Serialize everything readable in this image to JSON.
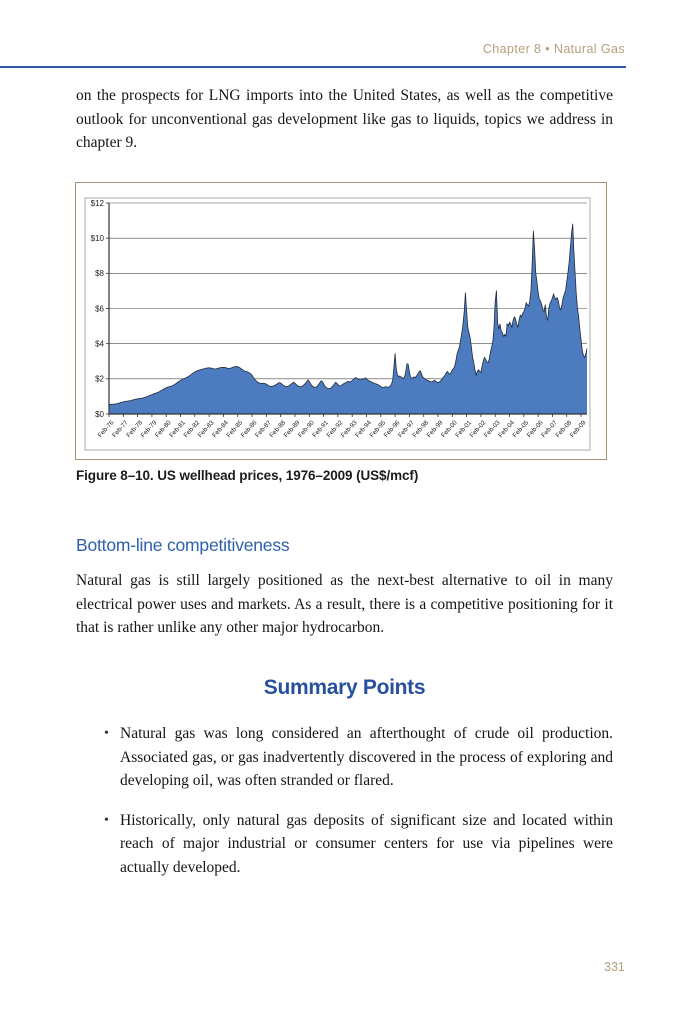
{
  "header": {
    "text": "Chapter 8  •  Natural Gas"
  },
  "intro_paragraph": "on the prospects for LNG imports into the United States, as well as the competitive outlook for unconventional gas development like gas to liquids, topics we address in chapter 9.",
  "figure": {
    "caption": "Figure 8–10. US wellhead prices, 1976–2009 (US$/mcf)"
  },
  "section": {
    "heading": "Bottom-line competitiveness",
    "body": "Natural gas is still largely positioned as the next-best alternative to oil in many electrical power uses and markets. As a result, there is a competitive positioning for it that is rather unlike any other major hydrocarbon."
  },
  "summary": {
    "heading": "Summary Points",
    "bullets": [
      "Natural gas was long considered an afterthought of crude oil production. Associated gas, or gas inadvertently discovered in the process of exploring and developing oil, was often stranded or flared.",
      "Historically, only natural gas deposits of significant size and located within reach of major industrial or consumer centers for use via pipelines were actually developed."
    ]
  },
  "page_number": "331",
  "colors": {
    "accent_tan": "#b3a07c",
    "rule_blue": "#2d5ca8",
    "heading_blue": "#2e61ad",
    "summary_blue": "#27509e",
    "area_fill": "#4d7bc0",
    "area_stroke": "#22293a",
    "gridline": "#4a4a4a",
    "axis": "#333333",
    "figure_border": "#ab8f72",
    "chart_frame": "#c9c9c9"
  },
  "chart_data": {
    "type": "area",
    "title": "",
    "xlabel": "",
    "ylabel": "",
    "frequency": "monthly",
    "x_start": "Feb-1976",
    "x_end": "Jul-2009",
    "ylim": [
      0,
      12
    ],
    "grid": true,
    "legend": false,
    "y_tick_labels": [
      "$0",
      "$2",
      "$4",
      "$6",
      "$8",
      "$10",
      "$12"
    ],
    "x_tick_labels": [
      "Feb-76",
      "Feb-77",
      "Feb-78",
      "Feb-79",
      "Feb-80",
      "Feb-81",
      "Feb-82",
      "Feb-83",
      "Feb-84",
      "Feb-85",
      "Feb-86",
      "Feb-87",
      "Feb-88",
      "Feb-89",
      "Feb-90",
      "Feb-91",
      "Feb-92",
      "Feb-93",
      "Feb-94",
      "Feb-95",
      "Feb-96",
      "Feb-97",
      "Feb-98",
      "Feb-99",
      "Feb-00",
      "Feb-01",
      "Feb-02",
      "Feb-03",
      "Feb-04",
      "Feb-05",
      "Feb-06",
      "Feb-07",
      "Feb-08",
      "Feb-09"
    ],
    "x_tick_month_interval": 12,
    "values": [
      0.54,
      0.55,
      0.55,
      0.56,
      0.56,
      0.57,
      0.58,
      0.59,
      0.61,
      0.63,
      0.65,
      0.67,
      0.69,
      0.71,
      0.72,
      0.73,
      0.74,
      0.75,
      0.76,
      0.78,
      0.8,
      0.82,
      0.84,
      0.85,
      0.86,
      0.87,
      0.88,
      0.89,
      0.91,
      0.92,
      0.94,
      0.96,
      0.99,
      1.02,
      1.05,
      1.08,
      1.1,
      1.13,
      1.16,
      1.18,
      1.2,
      1.23,
      1.26,
      1.3,
      1.34,
      1.38,
      1.42,
      1.46,
      1.49,
      1.52,
      1.54,
      1.56,
      1.58,
      1.61,
      1.64,
      1.68,
      1.72,
      1.77,
      1.82,
      1.87,
      1.91,
      1.95,
      1.98,
      2.01,
      2.04,
      2.07,
      2.11,
      2.15,
      2.2,
      2.25,
      2.3,
      2.35,
      2.39,
      2.43,
      2.46,
      2.48,
      2.5,
      2.52,
      2.54,
      2.56,
      2.58,
      2.6,
      2.61,
      2.62,
      2.63,
      2.62,
      2.6,
      2.58,
      2.57,
      2.56,
      2.57,
      2.59,
      2.61,
      2.63,
      2.64,
      2.65,
      2.66,
      2.65,
      2.63,
      2.61,
      2.6,
      2.59,
      2.61,
      2.63,
      2.66,
      2.68,
      2.69,
      2.7,
      2.69,
      2.66,
      2.62,
      2.57,
      2.52,
      2.47,
      2.44,
      2.42,
      2.4,
      2.37,
      2.33,
      2.28,
      2.2,
      2.1,
      2.0,
      1.92,
      1.85,
      1.8,
      1.77,
      1.75,
      1.74,
      1.74,
      1.75,
      1.73,
      1.7,
      1.65,
      1.61,
      1.58,
      1.57,
      1.58,
      1.6,
      1.63,
      1.67,
      1.71,
      1.76,
      1.79,
      1.76,
      1.7,
      1.64,
      1.6,
      1.58,
      1.57,
      1.58,
      1.61,
      1.66,
      1.71,
      1.77,
      1.8,
      1.75,
      1.68,
      1.62,
      1.58,
      1.56,
      1.55,
      1.58,
      1.63,
      1.69,
      1.76,
      1.85,
      1.94,
      1.86,
      1.73,
      1.63,
      1.57,
      1.53,
      1.51,
      1.54,
      1.6,
      1.69,
      1.79,
      1.89,
      1.84,
      1.73,
      1.6,
      1.51,
      1.47,
      1.45,
      1.44,
      1.47,
      1.53,
      1.61,
      1.71,
      1.8,
      1.76,
      1.68,
      1.61,
      1.59,
      1.63,
      1.69,
      1.73,
      1.76,
      1.8,
      1.84,
      1.86,
      1.81,
      1.86,
      1.9,
      1.97,
      2.03,
      2.07,
      2.04,
      1.99,
      1.96,
      1.94,
      1.97,
      2.02,
      1.97,
      2.06,
      2.0,
      1.94,
      1.89,
      1.86,
      1.83,
      1.79,
      1.76,
      1.73,
      1.71,
      1.69,
      1.66,
      1.61,
      1.56,
      1.53,
      1.51,
      1.53,
      1.56,
      1.53,
      1.51,
      1.54,
      1.6,
      1.72,
      1.92,
      2.65,
      3.45,
      2.55,
      2.22,
      2.12,
      2.16,
      2.11,
      2.06,
      2.02,
      2.12,
      2.42,
      2.86,
      2.82,
      2.38,
      2.1,
      2.02,
      2.06,
      2.11,
      2.07,
      2.16,
      2.28,
      2.38,
      2.46,
      2.32,
      2.12,
      2.06,
      2.0,
      1.96,
      1.92,
      1.89,
      1.86,
      1.82,
      1.84,
      1.87,
      1.92,
      1.86,
      1.81,
      1.79,
      1.82,
      1.87,
      1.96,
      2.06,
      2.12,
      2.22,
      2.36,
      2.41,
      2.31,
      2.26,
      2.36,
      2.52,
      2.58,
      2.72,
      3.02,
      3.42,
      3.62,
      3.82,
      4.22,
      4.62,
      5.12,
      5.82,
      6.9,
      5.85,
      4.92,
      4.62,
      4.32,
      3.82,
      3.22,
      2.92,
      2.52,
      2.22,
      2.42,
      2.52,
      2.42,
      2.36,
      2.72,
      3.02,
      3.22,
      3.12,
      2.96,
      2.92,
      3.12,
      3.52,
      3.82,
      4.12,
      4.92,
      6.4,
      7.02,
      5.22,
      4.82,
      5.12,
      4.72,
      4.62,
      4.42,
      4.52,
      4.42,
      5.12,
      5.02,
      5.22,
      5.12,
      4.92,
      5.32,
      5.52,
      5.42,
      5.12,
      4.92,
      5.32,
      5.62,
      5.52,
      5.72,
      5.82,
      6.02,
      6.32,
      6.22,
      6.12,
      6.42,
      7.02,
      8.52,
      10.42,
      9.42,
      8.02,
      7.52,
      6.92,
      6.52,
      6.42,
      6.22,
      5.92,
      5.82,
      6.22,
      5.52,
      5.32,
      6.02,
      6.32,
      6.42,
      6.62,
      6.82,
      6.62,
      6.52,
      6.62,
      6.42,
      6.02,
      5.92,
      6.22,
      6.62,
      6.82,
      7.02,
      7.52,
      8.02,
      8.62,
      9.42,
      10.22,
      10.82,
      9.22,
      8.02,
      6.82,
      6.02,
      5.52,
      4.82,
      4.22,
      3.62,
      3.32,
      3.22,
      3.42,
      3.72
    ]
  }
}
